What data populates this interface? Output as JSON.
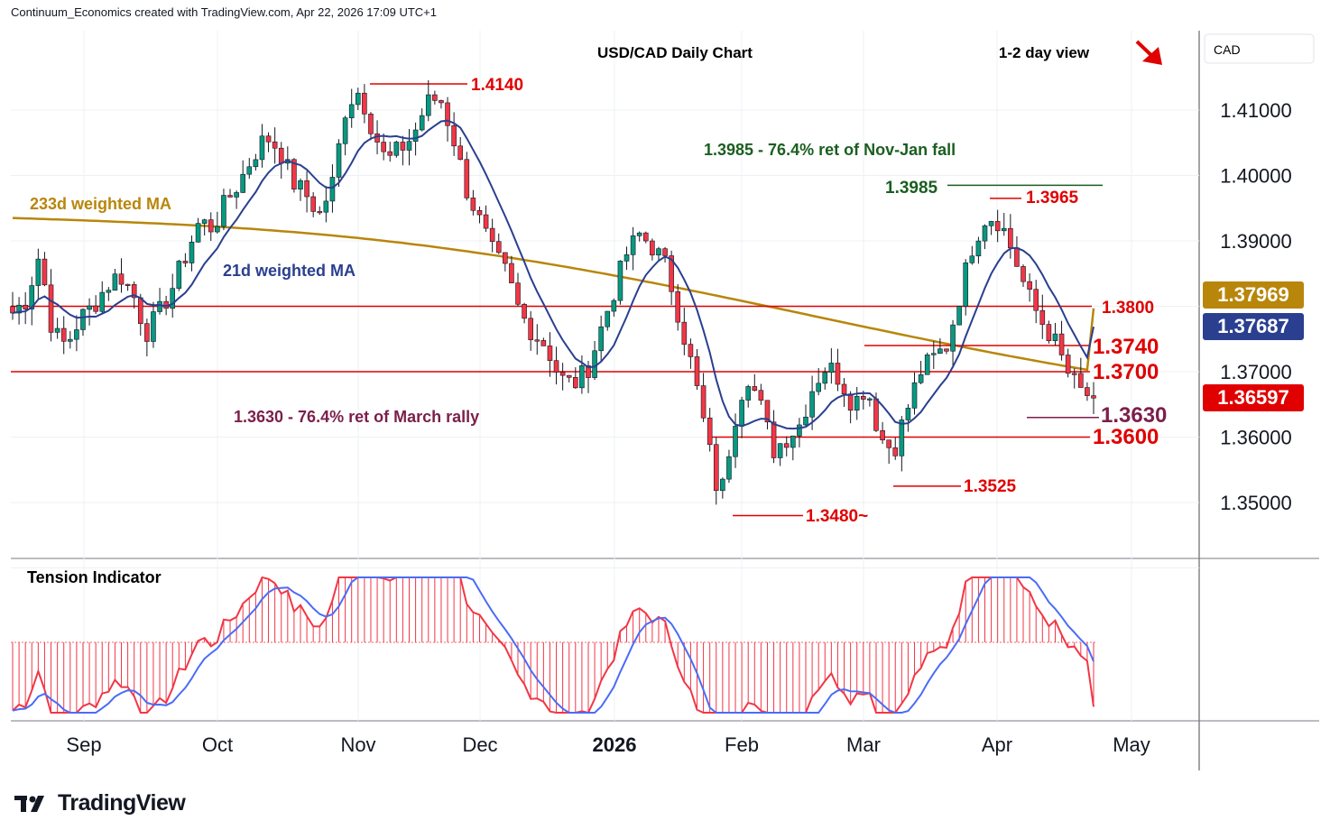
{
  "header": "Continuum_Economics created with TradingView.com, Apr 22, 2026 17:09 UTC+1",
  "chart_title": "USD/CAD Daily Chart",
  "view_label": "1-2 day view",
  "view_direction": "down",
  "currency_label": "CAD",
  "brand": "TradingView",
  "colors": {
    "up_candle": "#089981",
    "down_candle": "#f23645",
    "ma21": "#2a3f8f",
    "ma233": "#b8860b",
    "level_line": "#e00000",
    "annotation_green": "#1b5e20",
    "annotation_purple": "#7b1f4b",
    "tension_red": "#f23645",
    "tension_blue": "#4a6cf7"
  },
  "labels": {
    "ma233": "233d weighted MA",
    "ma21": "21d weighted MA",
    "ret_green": "1.3985 - 76.4% ret of Nov-Jan fall",
    "ret_purple": "1.3630 - 76.4% ret of March rally",
    "tension": "Tension Indicator"
  },
  "chart_data": {
    "type": "candlestick",
    "title": "USD/CAD Daily Chart",
    "x_ticks": [
      "Sep",
      "Oct",
      "Nov",
      "Dec",
      "2026",
      "Feb",
      "Mar",
      "Apr",
      "May"
    ],
    "y_ticks": [
      "1.41000",
      "1.40000",
      "1.39000",
      "1.37000",
      "1.36000",
      "1.35000"
    ],
    "ylim": [
      1.342,
      1.416
    ],
    "price_badges": [
      {
        "label": "1.37969",
        "value": 1.37969,
        "color": "#b8860b",
        "name": "233d weighted MA"
      },
      {
        "label": "1.37687",
        "value": 1.37687,
        "color": "#2a3f8f",
        "name": "21d weighted MA"
      },
      {
        "label": "1.36597",
        "value": 1.36597,
        "color": "#e00000",
        "name": "last price"
      }
    ],
    "levels": [
      {
        "label": "1.4140",
        "value": 1.414,
        "kind": "high"
      },
      {
        "label": "1.3985",
        "value": 1.3985,
        "kind": "retracement"
      },
      {
        "label": "1.3965",
        "value": 1.3965,
        "kind": "high"
      },
      {
        "label": "1.3800",
        "value": 1.38,
        "kind": "horizontal"
      },
      {
        "label": "1.3740",
        "value": 1.374,
        "kind": "high"
      },
      {
        "label": "1.3700",
        "value": 1.37,
        "kind": "horizontal"
      },
      {
        "label": "1.3630",
        "value": 1.363,
        "kind": "retracement"
      },
      {
        "label": "1.3600",
        "value": 1.36,
        "kind": "horizontal"
      },
      {
        "label": "1.3525",
        "value": 1.3525,
        "kind": "low"
      },
      {
        "label": "1.3480~",
        "value": 1.348,
        "kind": "low"
      }
    ],
    "series_close_approx": [
      1.379,
      1.381,
      1.388,
      1.376,
      1.374,
      1.378,
      1.38,
      1.383,
      1.385,
      1.382,
      1.376,
      1.379,
      1.383,
      1.388,
      1.393,
      1.392,
      1.396,
      1.399,
      1.403,
      1.406,
      1.404,
      1.399,
      1.397,
      1.394,
      1.399,
      1.411,
      1.413,
      1.407,
      1.402,
      1.404,
      1.406,
      1.411,
      1.412,
      1.406,
      1.398,
      1.393,
      1.388,
      1.385,
      1.379,
      1.376,
      1.374,
      1.369,
      1.368,
      1.37,
      1.376,
      1.382,
      1.388,
      1.391,
      1.389,
      1.386,
      1.378,
      1.37,
      1.36,
      1.35,
      1.362,
      1.37,
      1.365,
      1.358,
      1.36,
      1.362,
      1.368,
      1.371,
      1.369,
      1.365,
      1.368,
      1.36,
      1.358,
      1.364,
      1.37,
      1.372,
      1.374,
      1.382,
      1.39,
      1.394,
      1.393,
      1.388,
      1.382,
      1.378,
      1.375,
      1.37,
      1.367,
      1.366
    ]
  }
}
